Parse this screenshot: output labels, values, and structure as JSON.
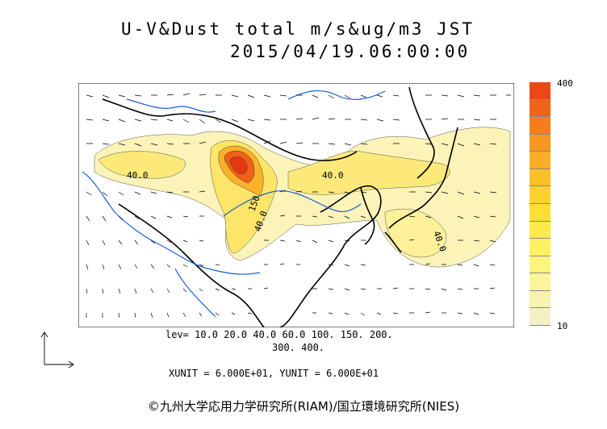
{
  "title": {
    "line1": "U-V&Dust total m/s&ug/m3 JST",
    "line2": "2015/04/19.06:00:00"
  },
  "colorbar": {
    "max_label": "400",
    "min_label": "10",
    "colors": [
      "#f4f0c8",
      "#f8f2b0",
      "#fbf49a",
      "#fdf47e",
      "#fef262",
      "#feea46",
      "#fee034",
      "#fdd22e",
      "#fcc12a",
      "#fbad26",
      "#f99622",
      "#f67d1e",
      "#f2621a",
      "#ec4816"
    ]
  },
  "map_labels": {
    "l1": "40.0",
    "l2": "150",
    "l3": "40.0",
    "l4": "40.0",
    "l5": "40.0"
  },
  "levels": {
    "line1": "lev= 10.0 20.0 40.0 60.0 100. 150. 200.",
    "line2": "300. 400."
  },
  "units": "XUNIT = 6.000E+01, YUNIT = 6.000E+01",
  "credit": "©九州大学応用力学研究所(RIAM)/国立環境研究所(NIES)",
  "palette": {
    "coast": "#000000",
    "river": "#1a5fd6",
    "dust_low": "#fbf3b8",
    "dust_high": "#e23a10"
  }
}
